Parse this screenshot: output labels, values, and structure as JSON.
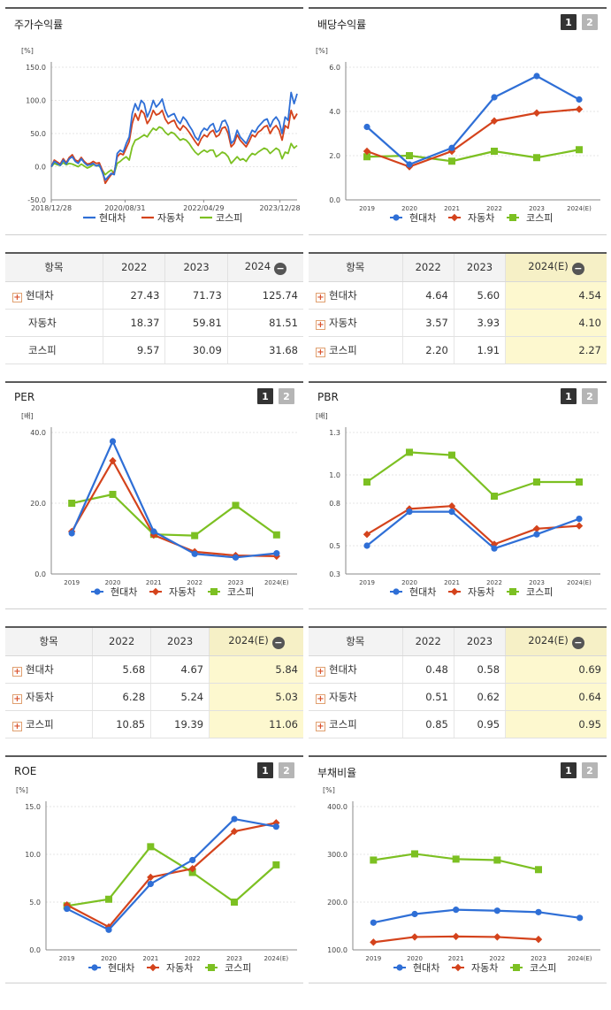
{
  "colors": {
    "hyundai": "#2f6fd6",
    "auto": "#d4431c",
    "kospi": "#7cc022"
  },
  "legend": [
    "현대차",
    "자동차",
    "코스피"
  ],
  "panels": {
    "stock": {
      "title": "주가수익률"
    },
    "dividend": {
      "title": "배당수익률",
      "btn1": "1",
      "btn2": "2"
    },
    "per": {
      "title": "PER",
      "btn1": "1",
      "btn2": "2"
    },
    "pbr": {
      "title": "PBR",
      "btn1": "1",
      "btn2": "2"
    },
    "roe": {
      "title": "ROE",
      "btn1": "1",
      "btn2": "2"
    },
    "debt": {
      "title": "부채비율",
      "btn1": "1",
      "btn2": "2"
    }
  },
  "chart_data": [
    {
      "id": "stock",
      "type": "line",
      "unit": "[%]",
      "yticks": [
        "150.0",
        "100.0",
        "50.0",
        "0.0",
        "-50.0"
      ],
      "ylim": [
        -50,
        150
      ],
      "xticks": [
        "2018/12/28",
        "2020/08/31",
        "2022/04/29",
        "2023/12/28"
      ],
      "series": [
        {
          "name": "현대차",
          "values": [
            0,
            8,
            5,
            2,
            10,
            4,
            12,
            15,
            8,
            5,
            12,
            6,
            2,
            3,
            5,
            1,
            3,
            -8,
            -20,
            -15,
            -10,
            -12,
            20,
            25,
            22,
            35,
            45,
            80,
            95,
            85,
            100,
            95,
            75,
            85,
            100,
            90,
            95,
            102,
            85,
            75,
            78,
            80,
            70,
            65,
            75,
            70,
            62,
            55,
            45,
            40,
            52,
            58,
            55,
            62,
            65,
            52,
            55,
            68,
            70,
            60,
            35,
            40,
            55,
            45,
            40,
            35,
            45,
            55,
            52,
            60,
            65,
            70,
            72,
            60,
            70,
            75,
            68,
            50,
            75,
            70,
            112,
            95,
            110
          ]
        },
        {
          "name": "자동차",
          "values": [
            0,
            10,
            7,
            4,
            12,
            6,
            14,
            18,
            10,
            8,
            14,
            8,
            4,
            5,
            8,
            5,
            6,
            -5,
            -25,
            -18,
            -12,
            -8,
            15,
            20,
            18,
            28,
            38,
            65,
            80,
            70,
            85,
            80,
            65,
            72,
            85,
            78,
            80,
            85,
            72,
            65,
            68,
            70,
            60,
            55,
            62,
            58,
            52,
            45,
            38,
            32,
            42,
            48,
            45,
            52,
            55,
            45,
            48,
            58,
            60,
            50,
            30,
            35,
            48,
            40,
            35,
            30,
            38,
            48,
            45,
            52,
            55,
            60,
            62,
            50,
            58,
            62,
            55,
            40,
            62,
            58,
            85,
            72,
            80
          ]
        },
        {
          "name": "코스피",
          "values": [
            0,
            5,
            3,
            2,
            6,
            3,
            5,
            4,
            2,
            0,
            4,
            1,
            -2,
            0,
            3,
            2,
            1,
            -5,
            -12,
            -8,
            -5,
            -10,
            5,
            8,
            12,
            15,
            10,
            30,
            40,
            42,
            45,
            48,
            45,
            52,
            58,
            55,
            60,
            58,
            52,
            48,
            52,
            50,
            45,
            40,
            42,
            40,
            35,
            28,
            22,
            18,
            22,
            25,
            22,
            25,
            25,
            15,
            18,
            22,
            20,
            15,
            5,
            10,
            15,
            10,
            12,
            8,
            15,
            20,
            18,
            22,
            25,
            28,
            26,
            20,
            24,
            28,
            25,
            12,
            22,
            20,
            35,
            28,
            32
          ]
        }
      ]
    },
    {
      "id": "dividend",
      "type": "line",
      "unit": "[%]",
      "yticks": [
        "6.0",
        "4.0",
        "2.0",
        "0.0"
      ],
      "ylim": [
        0,
        6
      ],
      "xticks": [
        "2019",
        "2020",
        "2021",
        "2022",
        "2023",
        "2024(E)"
      ],
      "series": [
        {
          "name": "현대차",
          "values": [
            3.3,
            1.6,
            2.35,
            4.64,
            5.6,
            4.54
          ]
        },
        {
          "name": "자동차",
          "values": [
            2.2,
            1.5,
            2.2,
            3.57,
            3.93,
            4.1
          ]
        },
        {
          "name": "코스피",
          "values": [
            1.95,
            2.0,
            1.75,
            2.2,
            1.91,
            2.27
          ]
        }
      ]
    },
    {
      "id": "per",
      "type": "line",
      "unit": "[배]",
      "yticks": [
        "40.0",
        "20.0",
        "0.0"
      ],
      "ylim": [
        0,
        40
      ],
      "xticks": [
        "2019",
        "2020",
        "2021",
        "2022",
        "2023",
        "2024(E)"
      ],
      "series": [
        {
          "name": "현대차",
          "values": [
            11.5,
            37.5,
            12.0,
            5.68,
            4.67,
            5.84
          ]
        },
        {
          "name": "자동차",
          "values": [
            12.0,
            32.0,
            11.0,
            6.28,
            5.24,
            5.03
          ]
        },
        {
          "name": "코스피",
          "values": [
            20.0,
            22.5,
            11.2,
            10.85,
            19.39,
            11.06
          ]
        }
      ]
    },
    {
      "id": "pbr",
      "type": "line",
      "unit": "[배]",
      "yticks": [
        "1.3",
        "1.0",
        "0.8",
        "0.5",
        "0.3"
      ],
      "ylim": [
        0.3,
        1.3
      ],
      "xticks": [
        "2019",
        "2020",
        "2021",
        "2022",
        "2023",
        "2024(E)"
      ],
      "series": [
        {
          "name": "현대차",
          "values": [
            0.5,
            0.74,
            0.74,
            0.48,
            0.58,
            0.69
          ]
        },
        {
          "name": "자동차",
          "values": [
            0.58,
            0.76,
            0.78,
            0.51,
            0.62,
            0.64
          ]
        },
        {
          "name": "코스피",
          "values": [
            0.95,
            1.16,
            1.14,
            0.85,
            0.95,
            0.95
          ]
        }
      ]
    },
    {
      "id": "roe",
      "type": "line",
      "unit": "[%]",
      "yticks": [
        "15.0",
        "10.0",
        "5.0",
        "0.0"
      ],
      "ylim": [
        0,
        15
      ],
      "xticks": [
        "2019",
        "2020",
        "2021",
        "2022",
        "2023",
        "2024(E)"
      ],
      "series": [
        {
          "name": "현대차",
          "values": [
            4.3,
            2.1,
            6.9,
            9.4,
            13.7,
            12.9
          ]
        },
        {
          "name": "자동차",
          "values": [
            4.7,
            2.4,
            7.6,
            8.5,
            12.4,
            13.3
          ]
        },
        {
          "name": "코스피",
          "values": [
            4.6,
            5.3,
            10.8,
            8.1,
            5.0,
            8.9
          ]
        }
      ]
    },
    {
      "id": "debt",
      "type": "line",
      "unit": "[%]",
      "yticks": [
        "400.0",
        "300.0",
        "200.0",
        "100.0"
      ],
      "ylim": [
        100,
        400
      ],
      "xticks": [
        "2019",
        "2020",
        "2021",
        "2022",
        "2023",
        "2024(E)"
      ],
      "series": [
        {
          "name": "현대차",
          "values": [
            157,
            175,
            184,
            182,
            179,
            167
          ]
        },
        {
          "name": "자동차",
          "values": [
            116,
            127,
            128,
            127,
            122,
            null
          ]
        },
        {
          "name": "코스피",
          "values": [
            288,
            301,
            290,
            288,
            268,
            null
          ]
        }
      ]
    }
  ],
  "tables": {
    "stock": {
      "header": [
        "항목",
        "2022",
        "2023",
        "2024"
      ],
      "rows": [
        {
          "name": "현대차",
          "v": [
            "27.43",
            "71.73",
            "125.74"
          ]
        },
        {
          "name": "자동차",
          "v": [
            "18.37",
            "59.81",
            "81.51"
          ]
        },
        {
          "name": "코스피",
          "v": [
            "9.57",
            "30.09",
            "31.68"
          ]
        }
      ]
    },
    "dividend": {
      "header": [
        "항목",
        "2022",
        "2023",
        "2024(E)"
      ],
      "rows": [
        {
          "name": "현대차",
          "v": [
            "4.64",
            "5.60",
            "4.54"
          ]
        },
        {
          "name": "자동차",
          "v": [
            "3.57",
            "3.93",
            "4.10"
          ]
        },
        {
          "name": "코스피",
          "v": [
            "2.20",
            "1.91",
            "2.27"
          ]
        }
      ]
    },
    "per": {
      "header": [
        "항목",
        "2022",
        "2023",
        "2024(E)"
      ],
      "rows": [
        {
          "name": "현대차",
          "v": [
            "5.68",
            "4.67",
            "5.84"
          ]
        },
        {
          "name": "자동차",
          "v": [
            "6.28",
            "5.24",
            "5.03"
          ]
        },
        {
          "name": "코스피",
          "v": [
            "10.85",
            "19.39",
            "11.06"
          ]
        }
      ]
    },
    "pbr": {
      "header": [
        "항목",
        "2022",
        "2023",
        "2024(E)"
      ],
      "rows": [
        {
          "name": "현대차",
          "v": [
            "0.48",
            "0.58",
            "0.69"
          ]
        },
        {
          "name": "자동차",
          "v": [
            "0.51",
            "0.62",
            "0.64"
          ]
        },
        {
          "name": "코스피",
          "v": [
            "0.85",
            "0.95",
            "0.95"
          ]
        }
      ]
    }
  }
}
